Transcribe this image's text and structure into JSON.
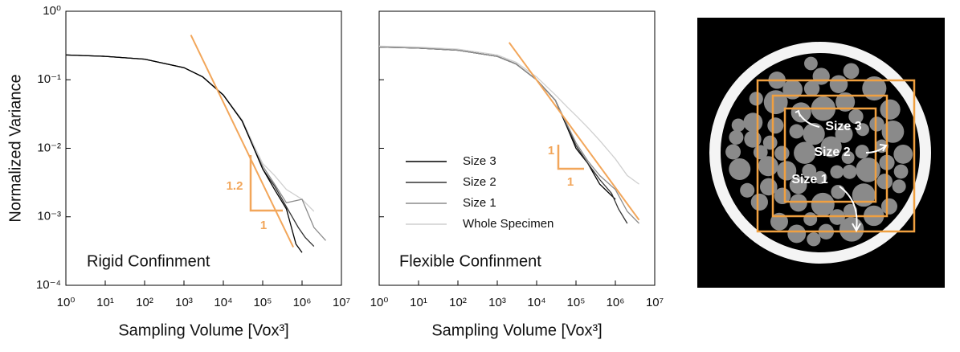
{
  "chart_data": [
    {
      "type": "line",
      "log_x": true,
      "log_y": true,
      "xlabel": "Sampling Volume [Vox³]",
      "ylabel": "Normalized Variance",
      "label": "Rigid Confinment",
      "xlim": [
        1,
        10000000
      ],
      "ylim": [
        0.0001,
        1
      ],
      "xticks": [
        {
          "value": 1,
          "label": "10⁰"
        },
        {
          "value": 10,
          "label": "10¹"
        },
        {
          "value": 100,
          "label": "10²"
        },
        {
          "value": 1000,
          "label": "10³"
        },
        {
          "value": 10000,
          "label": "10⁴"
        },
        {
          "value": 100000,
          "label": "10⁵"
        },
        {
          "value": 1000000,
          "label": "10⁶"
        },
        {
          "value": 10000000,
          "label": "10⁷"
        }
      ],
      "yticks": [
        {
          "value": 0.0001,
          "label": "10⁻⁴"
        },
        {
          "value": 0.001,
          "label": "10⁻³"
        },
        {
          "value": 0.01,
          "label": "10⁻²"
        },
        {
          "value": 0.1,
          "label": "10⁻¹"
        },
        {
          "value": 1,
          "label": "10⁰"
        }
      ],
      "series": [
        {
          "name": "Whole Specimen",
          "color": "#cfcfcf",
          "x": [
            1,
            10,
            100,
            1000,
            3000,
            10000,
            30000,
            60000,
            100000,
            200000,
            400000,
            1000000,
            2000000
          ],
          "values": [
            0.23,
            0.22,
            0.2,
            0.15,
            0.11,
            0.06,
            0.026,
            0.011,
            0.006,
            0.004,
            0.0025,
            0.0018,
            0.0012
          ]
        },
        {
          "name": "Size 1",
          "color": "#8c8c8c",
          "x": [
            1,
            10,
            100,
            1000,
            3000,
            10000,
            30000,
            60000,
            100000,
            200000,
            400000,
            1000000,
            2000000,
            4000000
          ],
          "values": [
            0.23,
            0.22,
            0.2,
            0.15,
            0.11,
            0.06,
            0.025,
            0.01,
            0.0055,
            0.003,
            0.0016,
            0.0018,
            0.0007,
            0.00045
          ]
        },
        {
          "name": "Size 2",
          "color": "#333333",
          "x": [
            1,
            10,
            100,
            1000,
            3000,
            10000,
            30000,
            60000,
            100000,
            200000,
            400000,
            800000,
            1200000,
            2000000
          ],
          "values": [
            0.23,
            0.22,
            0.2,
            0.15,
            0.11,
            0.06,
            0.025,
            0.01,
            0.005,
            0.0028,
            0.0014,
            0.0007,
            0.0005,
            0.00037
          ]
        },
        {
          "name": "Size 3",
          "color": "#000000",
          "x": [
            1,
            10,
            100,
            1000,
            3000,
            10000,
            30000,
            60000,
            100000,
            200000,
            400000,
            700000,
            1000000
          ],
          "values": [
            0.23,
            0.22,
            0.2,
            0.15,
            0.11,
            0.06,
            0.025,
            0.01,
            0.005,
            0.0025,
            0.0013,
            0.0004,
            0.0003
          ]
        }
      ],
      "fit": {
        "color": "#f2a65a",
        "x": [
          1500,
          600000
        ],
        "values": [
          0.45,
          0.00036
        ]
      },
      "slope_labels": [
        "1.2",
        "1"
      ]
    },
    {
      "type": "line",
      "log_x": true,
      "log_y": true,
      "legend": "center-left",
      "xlabel": "Sampling Volume [Vox³]",
      "label": "Flexible Confinment",
      "xlim": [
        1,
        10000000
      ],
      "ylim": [
        0.0001,
        1
      ],
      "xticks": [
        {
          "value": 1,
          "label": "10⁰"
        },
        {
          "value": 10,
          "label": "10¹"
        },
        {
          "value": 100,
          "label": "10²"
        },
        {
          "value": 1000,
          "label": "10³"
        },
        {
          "value": 10000,
          "label": "10⁴"
        },
        {
          "value": 100000,
          "label": "10⁵"
        },
        {
          "value": 1000000,
          "label": "10⁶"
        },
        {
          "value": 10000000,
          "label": "10⁷"
        }
      ],
      "yticks": [
        0.0001,
        0.001,
        0.01,
        0.1,
        1
      ],
      "series": [
        {
          "name": "Size 3",
          "color": "#000000",
          "x": [
            1,
            10,
            100,
            1000,
            3000,
            10000,
            30000,
            60000,
            100000,
            200000,
            400000,
            700000,
            1000000
          ],
          "values": [
            0.3,
            0.29,
            0.27,
            0.22,
            0.17,
            0.1,
            0.05,
            0.02,
            0.01,
            0.006,
            0.003,
            0.0022,
            0.0018
          ]
        },
        {
          "name": "Size 2",
          "color": "#333333",
          "x": [
            1,
            10,
            100,
            1000,
            3000,
            10000,
            30000,
            60000,
            100000,
            200000,
            400000,
            800000,
            1200000,
            2000000
          ],
          "values": [
            0.3,
            0.29,
            0.27,
            0.22,
            0.17,
            0.1,
            0.05,
            0.021,
            0.011,
            0.006,
            0.0035,
            0.0022,
            0.0013,
            0.0008
          ]
        },
        {
          "name": "Size 1",
          "color": "#8c8c8c",
          "x": [
            1,
            10,
            100,
            1000,
            3000,
            10000,
            30000,
            60000,
            100000,
            200000,
            400000,
            1000000,
            2000000,
            4000000
          ],
          "values": [
            0.3,
            0.29,
            0.27,
            0.22,
            0.17,
            0.1,
            0.05,
            0.022,
            0.012,
            0.0065,
            0.004,
            0.0025,
            0.0012,
            0.0008
          ]
        },
        {
          "name": "Whole Specimen",
          "color": "#cfcfcf",
          "x": [
            1,
            10,
            100,
            1000,
            3000,
            10000,
            30000,
            60000,
            100000,
            200000,
            400000,
            1000000,
            2000000,
            4000000
          ],
          "values": [
            0.31,
            0.3,
            0.28,
            0.23,
            0.18,
            0.11,
            0.06,
            0.04,
            0.03,
            0.02,
            0.013,
            0.007,
            0.004,
            0.003
          ]
        }
      ],
      "fit": {
        "color": "#f2a65a",
        "x": [
          2000,
          4000000
        ],
        "values": [
          0.35,
          0.0009
        ]
      },
      "slope_labels": [
        "1",
        "1"
      ]
    }
  ],
  "image_panel": {
    "labels": [
      "Size 3",
      "Size 2",
      "Size 1"
    ]
  }
}
